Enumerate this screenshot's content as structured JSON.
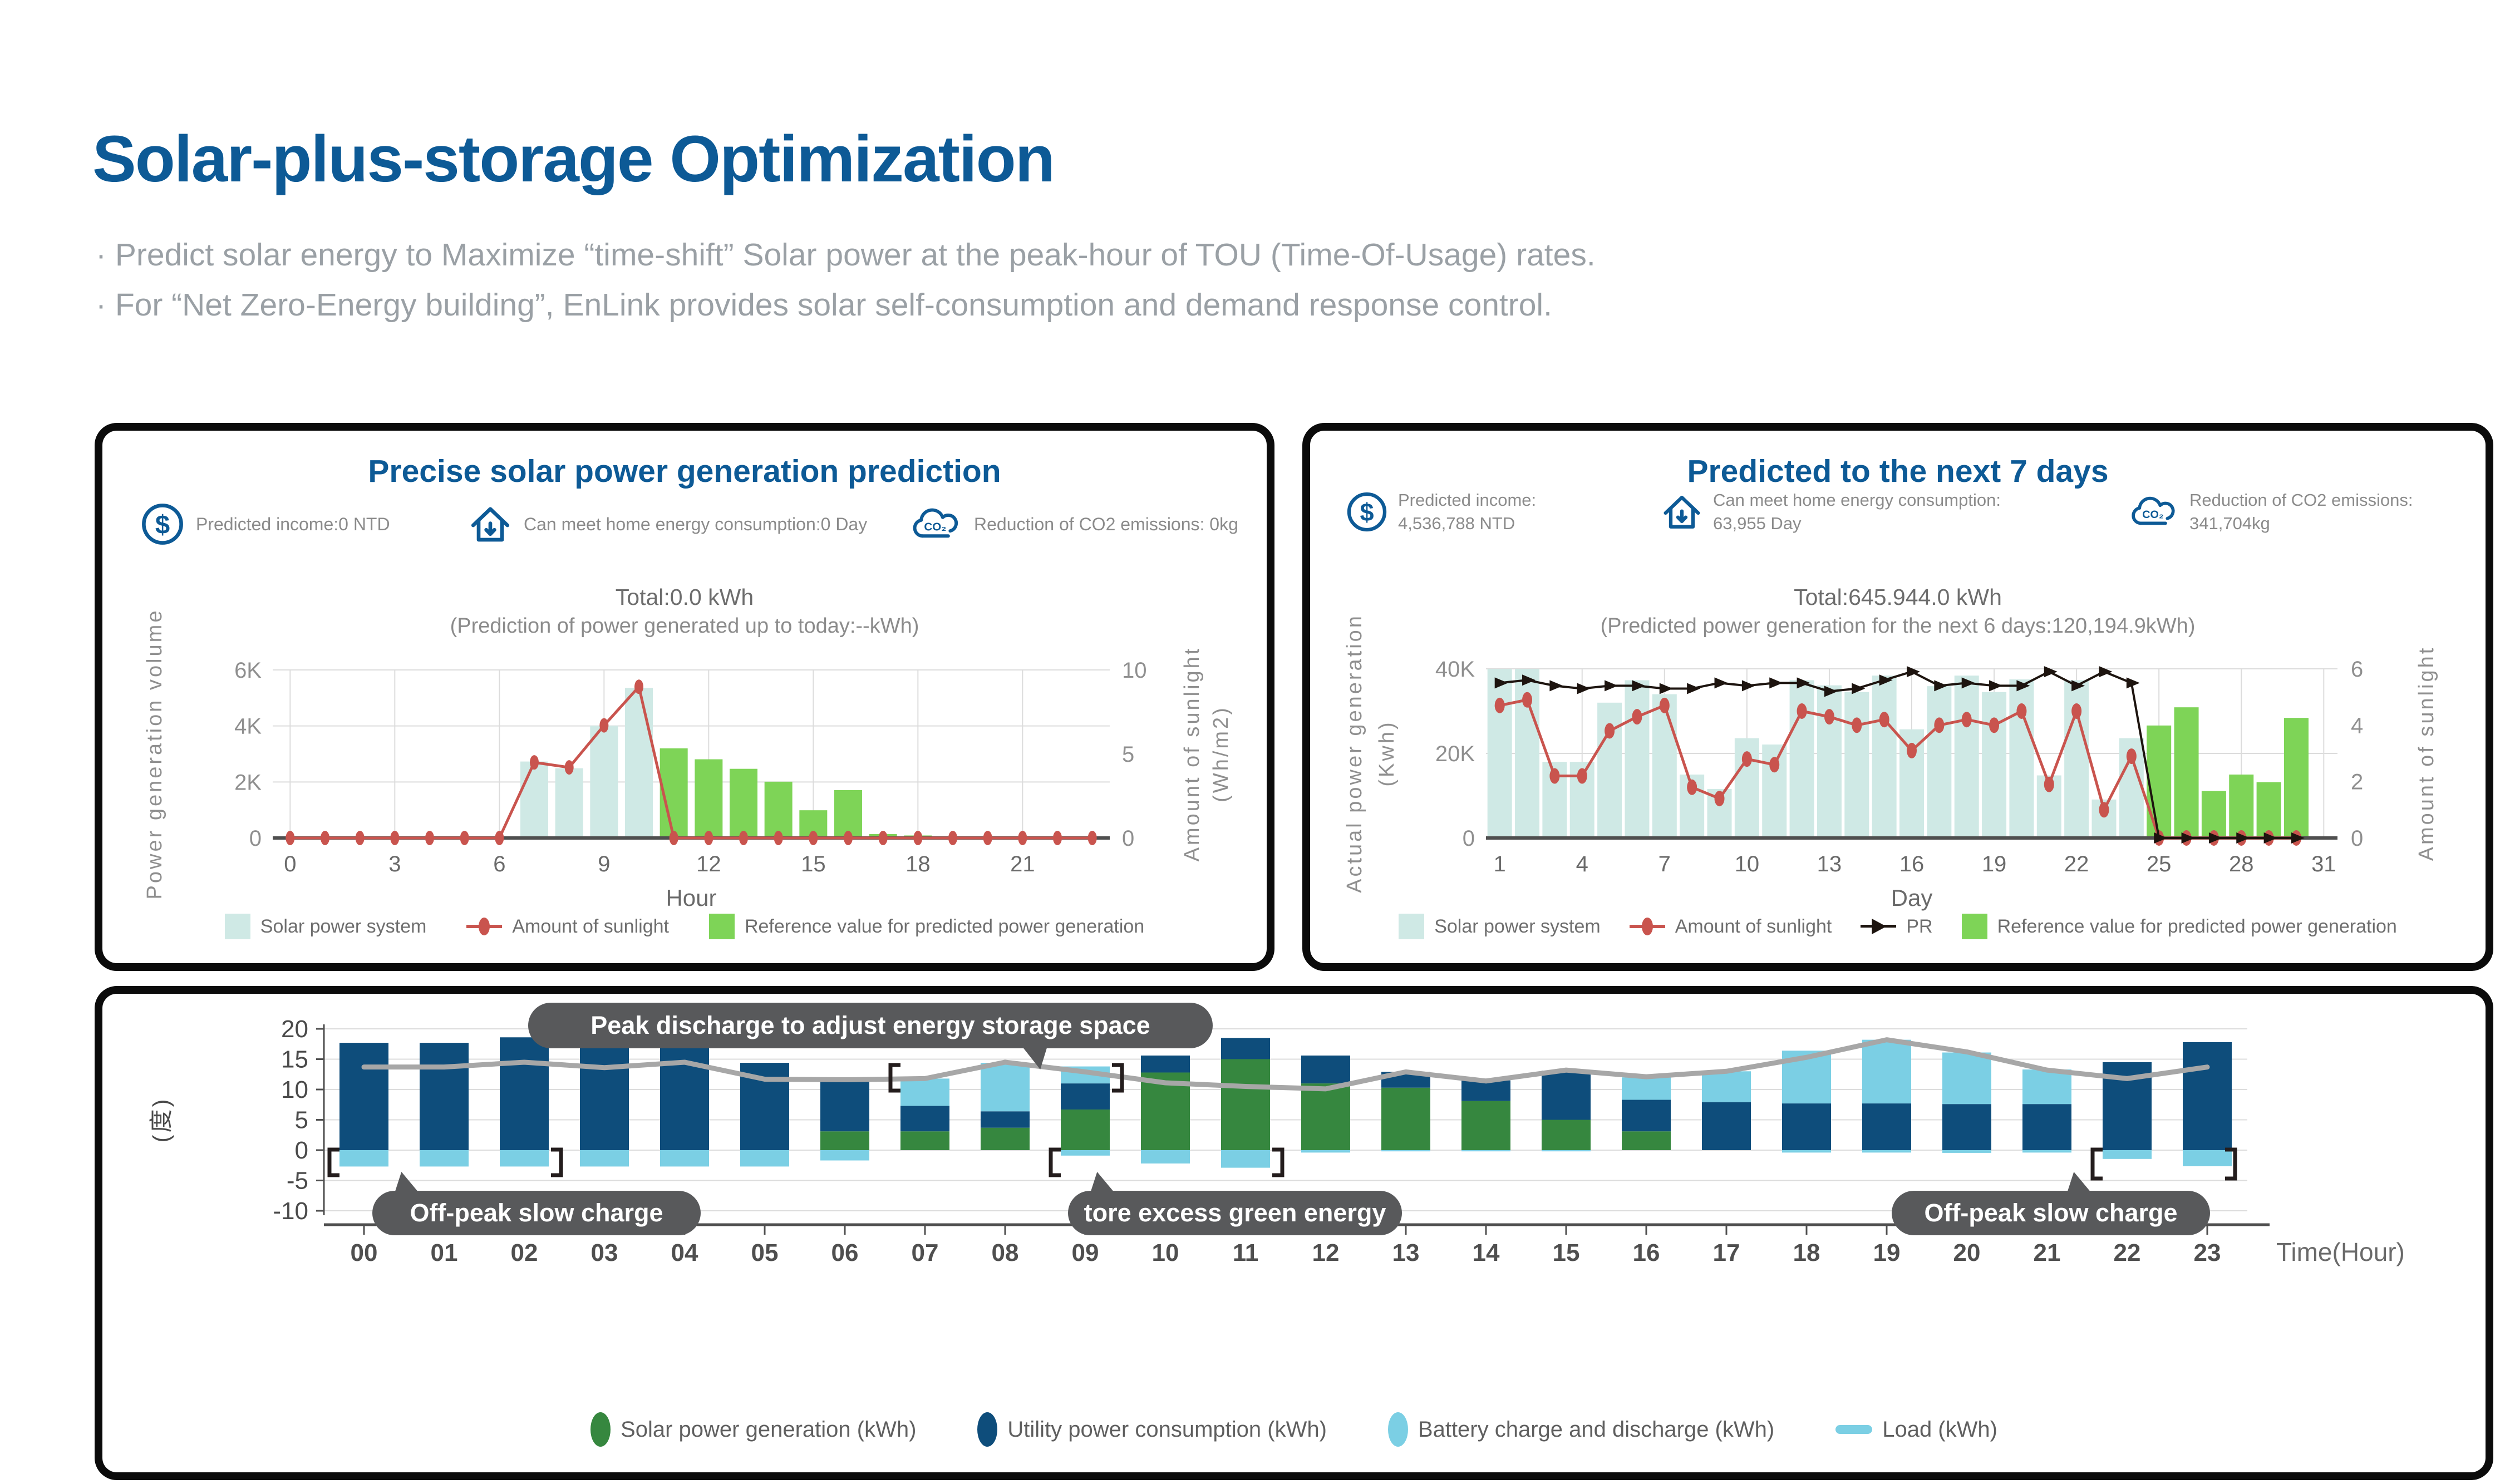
{
  "page": {
    "title": "Solar-plus-storage Optimization",
    "bullets": [
      "·  Predict solar energy to Maximize “time-shift” Solar power at the peak-hour of TOU (Time-Of-Usage) rates.",
      "·  For “Net Zero-Energy building”, EnLink provides solar self-consumption and demand response control."
    ]
  },
  "colors": {
    "title_blue": "#0d5a96",
    "bullet_gray": "#9aa0a5",
    "panel_border": "#0b0b0b",
    "pale_cyan_bar": "#cfe9e5",
    "bright_green_bar": "#7ed457",
    "sunlight_red": "#c9544e",
    "pr_black": "#1d140f",
    "navy_bar": "#0e4d7b",
    "forest_green_bar": "#36873f",
    "sky_bar": "#7bcfe4",
    "load_gray": "#a7a7a7",
    "pill_gray": "#58595b",
    "grid_gray": "#dcdcdc"
  },
  "panels": {
    "left": {
      "title": "Precise solar power generation prediction",
      "metrics": [
        {
          "icon": "dollar-icon",
          "label": "Predicted income:0 NTD"
        },
        {
          "icon": "home-icon",
          "label": "Can meet home energy consumption:0 Day"
        },
        {
          "icon": "co2-cloud-icon",
          "label": "Reduction of CO2 emissions: 0kg"
        }
      ],
      "total": "Total:0.0 kWh",
      "subtotal": "(Prediction of power generated up to today:--kWh)"
    },
    "right": {
      "title": "Predicted to the next 7 days",
      "metrics": [
        {
          "icon": "dollar-icon",
          "label": "Predicted income:",
          "value": "4,536,788 NTD"
        },
        {
          "icon": "home-icon",
          "label": "Can meet home energy consumption:",
          "value": "63,955 Day"
        },
        {
          "icon": "co2-cloud-icon",
          "label": "Reduction of CO2 emissions:",
          "value": "341,704kg"
        }
      ],
      "total": "Total:645.944.0 kWh",
      "subtotal": "(Predicted power generation for the next 6 days:120,194.9kWh)"
    },
    "bottom": {
      "annotations": {
        "peak": "Peak discharge to adjust energy storage space",
        "offpeak_left": "Off-peak slow charge",
        "store": "tore excess green energy",
        "offpeak_right": "Off-peak slow charge"
      }
    }
  },
  "chart_data": [
    {
      "id": "hourly-prediction",
      "type": "bar",
      "title": "Precise solar power generation prediction",
      "xlabel": "Hour",
      "x": [
        0,
        1,
        2,
        3,
        4,
        5,
        6,
        7,
        8,
        9,
        10,
        11,
        12,
        13,
        14,
        15,
        16,
        17,
        18,
        19,
        20,
        21,
        22,
        23
      ],
      "x_ticks": [
        0,
        3,
        6,
        9,
        12,
        15,
        18,
        21
      ],
      "y_left": {
        "label": "Power generation volume",
        "ticks": [
          0,
          2000,
          4000,
          6000
        ],
        "tick_labels": [
          "0",
          "2K",
          "4K",
          "6K"
        ],
        "max": 6000
      },
      "y_right": {
        "label": "Amount of sunlight",
        "sublabel": "(Wh/m2)",
        "ticks": [
          0,
          5,
          10
        ],
        "max": 10
      },
      "series": [
        {
          "name": "Solar power system",
          "type": "bar",
          "axis": "left",
          "color": "#cfe9e5",
          "values": [
            0,
            0,
            0,
            0,
            0,
            0,
            0,
            2730,
            2490,
            4010,
            5360,
            0,
            0,
            0,
            0,
            0,
            0,
            0,
            0,
            0,
            0,
            0,
            0,
            0
          ]
        },
        {
          "name": "Reference value for predicted power generation",
          "type": "bar",
          "axis": "left",
          "color": "#7ed457",
          "values": [
            0,
            0,
            0,
            0,
            0,
            0,
            0,
            0,
            0,
            0,
            0,
            3200,
            2810,
            2470,
            2010,
            990,
            1710,
            140,
            90,
            0,
            0,
            0,
            0,
            0
          ]
        },
        {
          "name": "Amount of sunlight",
          "type": "line",
          "axis": "right",
          "color": "#c9544e",
          "marker": "ellipse",
          "values": [
            0,
            0,
            0,
            0,
            0,
            0,
            0,
            4.5,
            4.2,
            6.7,
            9.0,
            0,
            0,
            0,
            0,
            0,
            0,
            0,
            0,
            0,
            0,
            0,
            0,
            0
          ]
        }
      ],
      "legend": [
        {
          "swatch": "square",
          "color": "#cfe9e5",
          "label": "Solar power system"
        },
        {
          "swatch": "line-dot",
          "color": "#c9544e",
          "label": "Amount of sunlight"
        },
        {
          "swatch": "square",
          "color": "#7ed457",
          "label": "Reference value for predicted power generation"
        }
      ]
    },
    {
      "id": "monthly-prediction",
      "type": "bar",
      "title": "Predicted to the next 7 days",
      "xlabel": "Day",
      "x_ticks": [
        1,
        4,
        7,
        10,
        13,
        16,
        19,
        22,
        25,
        28,
        31
      ],
      "y_left": {
        "label": "Actual power generation",
        "sublabel": "(Kwh)",
        "ticks": [
          0,
          20000,
          40000
        ],
        "tick_labels": [
          "0",
          "20K",
          "40K"
        ],
        "max": 40000
      },
      "y_right": {
        "label": "Amount of sunlight",
        "ticks": [
          0,
          2,
          4,
          6
        ],
        "max": 6
      },
      "series": [
        {
          "name": "Solar power system",
          "type": "bar",
          "axis": "left",
          "color": "#cfe9e5",
          "values": [
            40000,
            40000,
            18000,
            18000,
            32000,
            37300,
            34000,
            15000,
            11600,
            23600,
            22100,
            37300,
            36100,
            34500,
            38400,
            25700,
            35900,
            38400,
            34500,
            37500,
            14800,
            37300,
            9100,
            23600,
            0,
            0,
            0,
            0,
            0,
            0
          ]
        },
        {
          "name": "Reference value for predicted power generation",
          "type": "bar",
          "axis": "left",
          "color": "#7ed457",
          "values": [
            0,
            0,
            0,
            0,
            0,
            0,
            0,
            0,
            0,
            0,
            0,
            0,
            0,
            0,
            0,
            0,
            0,
            0,
            0,
            0,
            0,
            0,
            0,
            0,
            26600,
            30900,
            11100,
            15000,
            13200,
            28400
          ]
        },
        {
          "name": "Amount of sunlight",
          "type": "line",
          "axis": "right",
          "color": "#c9544e",
          "marker": "ellipse",
          "values": [
            4.7,
            4.9,
            2.2,
            2.2,
            3.8,
            4.3,
            4.7,
            1.8,
            1.4,
            2.8,
            2.6,
            4.5,
            4.3,
            4.0,
            4.2,
            3.1,
            4.0,
            4.2,
            4.0,
            4.5,
            1.9,
            4.5,
            1.0,
            2.9,
            0,
            0,
            0,
            0,
            0,
            0
          ]
        },
        {
          "name": "PR",
          "type": "line",
          "axis": "right",
          "color": "#1d140f",
          "marker": "arrow",
          "values": [
            5.5,
            5.6,
            5.4,
            5.3,
            5.4,
            5.4,
            5.3,
            5.3,
            5.5,
            5.4,
            5.5,
            5.5,
            5.2,
            5.3,
            5.6,
            5.9,
            5.4,
            5.5,
            5.4,
            5.4,
            5.9,
            5.4,
            5.9,
            5.5,
            0,
            0,
            0,
            0,
            0,
            0
          ]
        }
      ],
      "legend": [
        {
          "swatch": "square",
          "color": "#cfe9e5",
          "label": "Solar power system"
        },
        {
          "swatch": "line-dot",
          "color": "#c9544e",
          "label": "Amount of sunlight"
        },
        {
          "swatch": "arrow",
          "color": "#1d140f",
          "label": "PR"
        },
        {
          "swatch": "square",
          "color": "#7ed457",
          "label": "Reference value for predicted power generation"
        }
      ]
    },
    {
      "id": "daily-schedule",
      "type": "bar",
      "xlabel": "Time(Hour)",
      "ylabel": "(度)",
      "x_ticks": [
        "00",
        "01",
        "02",
        "03",
        "04",
        "05",
        "06",
        "07",
        "08",
        "09",
        "10",
        "11",
        "12",
        "13",
        "14",
        "15",
        "16",
        "17",
        "18",
        "19",
        "20",
        "21",
        "22",
        "23"
      ],
      "y_ticks": [
        20,
        15,
        10,
        5,
        0,
        -5,
        -10
      ],
      "ylim": [
        -10,
        20
      ],
      "series": [
        {
          "name": "Solar power generation (kWh)",
          "type": "stacked-bar",
          "color": "#36873f",
          "values": [
            0,
            0,
            0,
            0,
            0,
            0,
            3.1,
            3.1,
            3.7,
            6.7,
            12.8,
            15.0,
            11.0,
            10.3,
            8.1,
            5.0,
            3.1,
            0,
            0,
            0,
            0,
            0,
            0,
            0
          ]
        },
        {
          "name": "Utility power consumption (kWh)",
          "type": "stacked-bar",
          "color": "#0e4d7b",
          "values": [
            17.7,
            17.7,
            18.6,
            17.7,
            18.6,
            14.4,
            8.6,
            4.2,
            2.7,
            4.3,
            2.8,
            3.5,
            4.6,
            2.6,
            3.4,
            8.1,
            5.2,
            7.9,
            7.7,
            7.7,
            7.6,
            7.6,
            14.5,
            17.8
          ]
        },
        {
          "name": "Battery charge and discharge (kWh)",
          "type": "stacked-bar",
          "color": "#7bcfe4",
          "values": [
            0,
            0,
            0,
            0,
            0,
            0,
            0,
            4.5,
            8.0,
            2.8,
            0,
            0,
            0,
            0,
            0,
            0,
            3.7,
            5.1,
            8.7,
            10.5,
            8.5,
            5.7,
            0,
            0
          ],
          "negative_values": [
            -2.7,
            -2.7,
            -2.7,
            -2.7,
            -2.7,
            -2.7,
            -1.7,
            0,
            0,
            -0.9,
            -2.2,
            -2.9,
            -0.4,
            -0.2,
            -0.2,
            -0.2,
            0,
            0,
            -0.4,
            -0.4,
            -0.45,
            -0.4,
            -1.45,
            -2.65
          ]
        },
        {
          "name": "Load (kWh)",
          "type": "line",
          "color": "#a7a7a7",
          "legend_color": "#7bcfe4",
          "values": [
            13.7,
            13.7,
            14.5,
            13.6,
            14.5,
            11.7,
            11.6,
            11.8,
            14.5,
            12.9,
            11.1,
            10.5,
            10.1,
            12.9,
            11.4,
            13.2,
            12.1,
            13.0,
            15.3,
            18.2,
            16.2,
            13.2,
            11.8,
            13.7
          ]
        }
      ],
      "annotations": [
        "Peak discharge to adjust energy storage space",
        "Off-peak slow charge",
        "tore excess green energy",
        "Off-peak slow charge"
      ],
      "legend": [
        {
          "swatch": "ellipse",
          "color": "#36873f",
          "label": "Solar power generation (kWh)"
        },
        {
          "swatch": "ellipse",
          "color": "#0e4d7b",
          "label": "Utility power consumption (kWh)"
        },
        {
          "swatch": "ellipse",
          "color": "#7bcfe4",
          "label": "Battery charge and discharge (kWh)"
        },
        {
          "swatch": "line",
          "color": "#7bcfe4",
          "label": "Load (kWh)"
        }
      ]
    }
  ]
}
